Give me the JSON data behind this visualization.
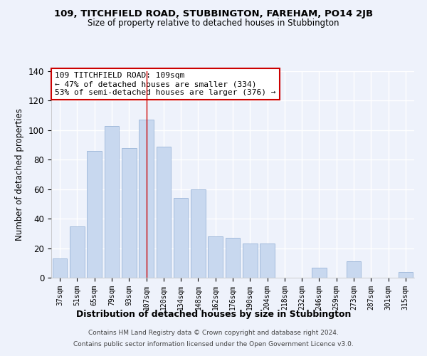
{
  "title": "109, TITCHFIELD ROAD, STUBBINGTON, FAREHAM, PO14 2JB",
  "subtitle": "Size of property relative to detached houses in Stubbington",
  "xlabel": "Distribution of detached houses by size in Stubbington",
  "ylabel": "Number of detached properties",
  "categories": [
    "37sqm",
    "51sqm",
    "65sqm",
    "79sqm",
    "93sqm",
    "107sqm",
    "120sqm",
    "134sqm",
    "148sqm",
    "162sqm",
    "176sqm",
    "190sqm",
    "204sqm",
    "218sqm",
    "232sqm",
    "246sqm",
    "259sqm",
    "273sqm",
    "287sqm",
    "301sqm",
    "315sqm"
  ],
  "values": [
    13,
    35,
    86,
    103,
    88,
    107,
    89,
    54,
    60,
    28,
    27,
    23,
    23,
    0,
    0,
    7,
    0,
    11,
    0,
    0,
    4
  ],
  "bar_color": "#c8d8ef",
  "bar_edge_color": "#9ab5d8",
  "highlight_index": 5,
  "annotation_text": "109 TITCHFIELD ROAD: 109sqm\n← 47% of detached houses are smaller (334)\n53% of semi-detached houses are larger (376) →",
  "annotation_box_color": "#ffffff",
  "annotation_box_edge": "#cc0000",
  "background_color": "#eef2fb",
  "grid_color": "#ffffff",
  "ylim": [
    0,
    140
  ],
  "footer_line1": "Contains HM Land Registry data © Crown copyright and database right 2024.",
  "footer_line2": "Contains public sector information licensed under the Open Government Licence v3.0."
}
